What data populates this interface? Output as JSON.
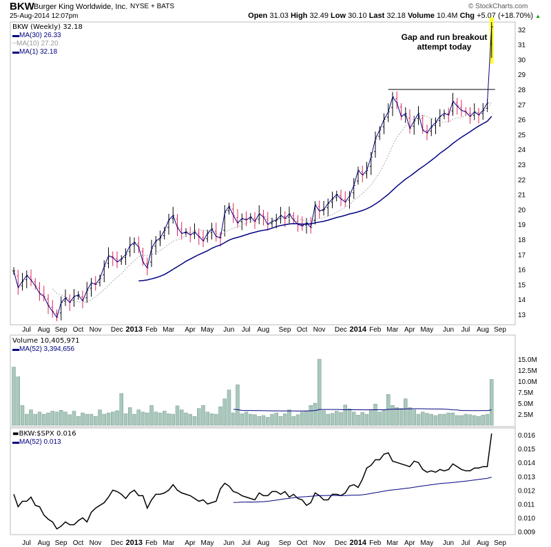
{
  "header": {
    "symbol": "BKW",
    "name": "Burger King Worldwide, Inc.",
    "exchange": "NYSE + BATS",
    "datetime": "25-Aug-2014 12:07pm",
    "copyright": "© StockCharts.com",
    "open_label": "Open",
    "open": "31.03",
    "high_label": "High",
    "high": "32.49",
    "low_label": "Low",
    "low": "30.10",
    "last_label": "Last",
    "last": "32.18",
    "volume_label": "Volume",
    "volume": "10.4M",
    "chg_label": "Chg",
    "chg": "+5.07 (+18.70%)",
    "up_arrow": "▲"
  },
  "colors": {
    "up": "#000000",
    "down": "#e0205a",
    "ma": "#000080",
    "ma10": "#aaaaaa",
    "volume": "#a8c8bc",
    "highlight": "#ffff33"
  },
  "annotation": {
    "line1": "Gap and run breakout",
    "line2": "attempt today"
  },
  "chart_data": [
    {
      "type": "line",
      "title": "BKW (Weekly) 32.18",
      "legend": [
        "MA(30) 26.33",
        "MA(10) 27.20",
        "MA(1) 32.18"
      ],
      "ylim": [
        12.5,
        32.8
      ],
      "yticks": [
        13,
        14,
        15,
        16,
        17,
        18,
        19,
        20,
        21,
        22,
        23,
        24,
        25,
        26,
        27,
        28,
        29,
        30,
        31,
        32
      ],
      "resistance": 28,
      "last_bar": {
        "open": 31.03,
        "high": 32.49,
        "low": 30.1,
        "close": 32.18
      },
      "closes": [
        15.9,
        14.8,
        15.2,
        15.6,
        15.3,
        14.9,
        14.4,
        14.2,
        13.6,
        13.2,
        12.8,
        13.8,
        14.1,
        13.8,
        14.2,
        14.3,
        13.9,
        14.6,
        15.1,
        15.0,
        15.4,
        16.2,
        16.9,
        16.8,
        16.5,
        16.7,
        17.0,
        17.6,
        17.8,
        17.5,
        16.5,
        16.1,
        17.4,
        17.9,
        18.1,
        18.6,
        19.3,
        19.6,
        18.8,
        18.4,
        18.5,
        18.3,
        18.5,
        18.2,
        17.9,
        18.4,
        18.7,
        18.2,
        18.1,
        19.8,
        20.2,
        19.6,
        19.1,
        19.4,
        19.3,
        19.5,
        19.2,
        19.7,
        19.5,
        19.0,
        19.2,
        19.3,
        19.6,
        19.4,
        19.7,
        19.3,
        19.0,
        18.9,
        19.1,
        18.8,
        20.3,
        19.9,
        20.0,
        20.4,
        20.7,
        21.0,
        20.7,
        20.5,
        20.9,
        21.6,
        22.6,
        22.3,
        22.6,
        23.5,
        24.7,
        25.3,
        26.0,
        26.5,
        27.5,
        27.1,
        26.2,
        26.4,
        25.4,
        25.9,
        26.4,
        25.3,
        25.1,
        25.5,
        25.8,
        26.2,
        26.4,
        26.3,
        27.2,
        26.9,
        26.6,
        26.5,
        26.2,
        26.5,
        26.3,
        26.6,
        27.1,
        32.18
      ]
    },
    {
      "type": "bar",
      "title": "Volume 10,405,971",
      "legend": [
        "MA(52) 3,394,656"
      ],
      "units": "millions",
      "ylim": [
        0,
        16
      ],
      "yticks": [
        "2.5M",
        "5.0M",
        "7.5M",
        "10.0M",
        "12.5M",
        "15.0M"
      ],
      "values": [
        13.2,
        11.0,
        4.5,
        2.5,
        3.5,
        2.5,
        3.0,
        2.5,
        2.8,
        3.2,
        3.0,
        3.4,
        3.0,
        2.4,
        3.2,
        2.0,
        2.8,
        2.5,
        2.5,
        2.0,
        3.5,
        2.5,
        2.8,
        3.0,
        3.3,
        7.2,
        2.6,
        4.0,
        2.5,
        3.5,
        3.0,
        2.8,
        4.5,
        3.0,
        2.8,
        3.2,
        2.6,
        2.5,
        4.4,
        3.5,
        2.8,
        2.5,
        2.0,
        3.8,
        4.5,
        3.0,
        2.6,
        2.5,
        4.2,
        6.0,
        8.0,
        2.8,
        9.2,
        2.6,
        3.0,
        2.5,
        2.4,
        2.0,
        2.2,
        1.8,
        2.5,
        2.8,
        2.0,
        2.6,
        3.5,
        2.0,
        2.4,
        3.0,
        3.2,
        4.5,
        5.0,
        15.0,
        3.3,
        2.5,
        2.7,
        3.2,
        2.9,
        4.6,
        3.7,
        3.0,
        2.3,
        2.9,
        2.5,
        3.5,
        4.8,
        3.0,
        3.4,
        7.0,
        4.5,
        4.0,
        3.8,
        6.0,
        4.0,
        3.5,
        2.5,
        3.0,
        2.7,
        2.5,
        2.2,
        2.5,
        2.5,
        2.8,
        2.8,
        2.2,
        2.2,
        2.5,
        2.4,
        2.2,
        2.0,
        2.3,
        2.5,
        10.4
      ]
    },
    {
      "type": "line",
      "title": "BKW:$SPX 0.016",
      "legend": [
        "MA(52) 0.013"
      ],
      "ylim": [
        0.0086,
        0.0165
      ],
      "yticks": [
        "0.009",
        "0.010",
        "0.011",
        "0.012",
        "0.013",
        "0.014",
        "0.015",
        "0.016"
      ],
      "values": [
        0.0117,
        0.0108,
        0.0112,
        0.0112,
        0.0115,
        0.0109,
        0.0108,
        0.0102,
        0.0099,
        0.0097,
        0.0092,
        0.0094,
        0.0097,
        0.0095,
        0.0095,
        0.0098,
        0.01,
        0.0097,
        0.0104,
        0.0107,
        0.0109,
        0.0111,
        0.0115,
        0.012,
        0.0119,
        0.0117,
        0.0114,
        0.0118,
        0.012,
        0.0116,
        0.0116,
        0.0107,
        0.0113,
        0.0117,
        0.0117,
        0.0118,
        0.012,
        0.0124,
        0.012,
        0.0118,
        0.0117,
        0.0116,
        0.0114,
        0.0112,
        0.0113,
        0.011,
        0.0111,
        0.0112,
        0.0121,
        0.0125,
        0.0123,
        0.0119,
        0.0118,
        0.0116,
        0.0115,
        0.0114,
        0.0113,
        0.0118,
        0.0116,
        0.0116,
        0.0119,
        0.0119,
        0.0117,
        0.0119,
        0.0115,
        0.0117,
        0.0114,
        0.0113,
        0.0109,
        0.0111,
        0.0118,
        0.0116,
        0.0113,
        0.0113,
        0.0117,
        0.0117,
        0.0116,
        0.0118,
        0.0123,
        0.0124,
        0.0122,
        0.0128,
        0.0136,
        0.0138,
        0.0142,
        0.0142,
        0.0146,
        0.0147,
        0.0141,
        0.014,
        0.0139,
        0.0138,
        0.0137,
        0.0141,
        0.014,
        0.0135,
        0.0133,
        0.0134,
        0.0133,
        0.0135,
        0.0134,
        0.0135,
        0.0139,
        0.0137,
        0.0135,
        0.0134,
        0.0134,
        0.0136,
        0.0136,
        0.0137,
        0.0137,
        0.0161
      ]
    }
  ],
  "x_axis": {
    "labels": [
      {
        "t": "Jul",
        "w": 2
      },
      {
        "t": "Aug",
        "w": 6
      },
      {
        "t": "Sep",
        "w": 10
      },
      {
        "t": "Oct",
        "w": 14
      },
      {
        "t": "Nov",
        "w": 18
      },
      {
        "t": "Dec",
        "w": 23
      },
      {
        "t": "2013",
        "w": 27,
        "bold": true
      },
      {
        "t": "Feb",
        "w": 31
      },
      {
        "t": "Mar",
        "w": 35
      },
      {
        "t": "Apr",
        "w": 40
      },
      {
        "t": "May",
        "w": 44
      },
      {
        "t": "Jun",
        "w": 49
      },
      {
        "t": "Jul",
        "w": 53
      },
      {
        "t": "Aug",
        "w": 57
      },
      {
        "t": "Sep",
        "w": 62
      },
      {
        "t": "Oct",
        "w": 66
      },
      {
        "t": "Nov",
        "w": 70
      },
      {
        "t": "Dec",
        "w": 75
      },
      {
        "t": "2014",
        "w": 79,
        "bold": true
      },
      {
        "t": "Feb",
        "w": 83
      },
      {
        "t": "Mar",
        "w": 87
      },
      {
        "t": "Apr",
        "w": 91
      },
      {
        "t": "May",
        "w": 95
      },
      {
        "t": "Jun",
        "w": 100
      },
      {
        "t": "Jul",
        "w": 104
      },
      {
        "t": "Aug",
        "w": 108
      },
      {
        "t": "Sep",
        "w": 112
      }
    ]
  }
}
